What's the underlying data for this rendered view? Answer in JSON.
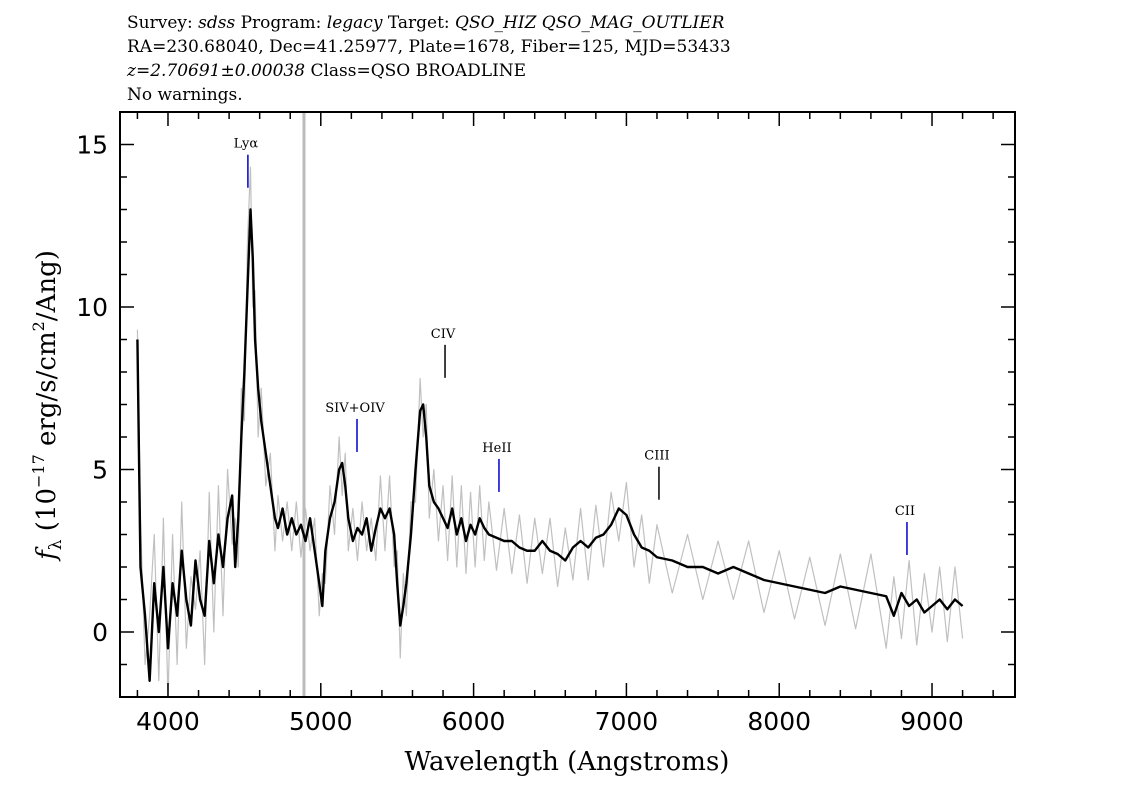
{
  "chart_data": {
    "type": "line",
    "title_lines": [
      [
        {
          "text": "Survey: "
        },
        {
          "text": "sdss",
          "italic": true
        },
        {
          "text": " Program: "
        },
        {
          "text": "legacy",
          "italic": true
        },
        {
          "text": " Target: "
        },
        {
          "text": "QSO_HIZ QSO_MAG_OUTLIER",
          "italic": true
        }
      ],
      [
        {
          "text": "RA=230.68040, Dec=41.25977, Plate=1678, Fiber=125, MJD=53433"
        }
      ],
      [
        {
          "text": "z=2.70691±0.00038",
          "italic": true
        },
        {
          "text": " Class=QSO BROADLINE"
        }
      ],
      [
        {
          "text": "No warnings."
        }
      ]
    ],
    "xlabel": "Wavelength (Angstroms)",
    "ylabel": [
      "f",
      "λ",
      " (10",
      "−17",
      " erg/s/cm",
      "2",
      "/Ang)"
    ],
    "xlim": [
      3686,
      9543
    ],
    "ylim": [
      -2,
      16
    ],
    "xticks": [
      4000,
      5000,
      6000,
      7000,
      8000,
      9000
    ],
    "yticks": [
      0,
      5,
      10,
      15
    ],
    "xminorticks": [
      3800,
      4200,
      4400,
      4600,
      4800,
      5200,
      5400,
      5600,
      5800,
      6200,
      6400,
      6600,
      6800,
      7200,
      7400,
      7600,
      7800,
      8200,
      8400,
      8600,
      8800,
      9200,
      9400
    ],
    "yminorticks": [
      -1,
      1,
      2,
      3,
      4,
      6,
      7,
      8,
      9,
      11,
      12,
      13,
      14,
      16
    ],
    "vlines": [
      {
        "x": 4890,
        "color": "#bbbbbb"
      }
    ],
    "x": [
      3800,
      3820,
      3850,
      3880,
      3910,
      3940,
      3970,
      4000,
      4030,
      4060,
      4090,
      4120,
      4150,
      4180,
      4210,
      4240,
      4270,
      4300,
      4330,
      4360,
      4390,
      4420,
      4440,
      4460,
      4480,
      4500,
      4520,
      4540,
      4555,
      4570,
      4590,
      4610,
      4640,
      4670,
      4700,
      4720,
      4750,
      4780,
      4810,
      4840,
      4870,
      4900,
      4930,
      4960,
      4990,
      5010,
      5030,
      5060,
      5090,
      5120,
      5140,
      5160,
      5180,
      5210,
      5240,
      5270,
      5300,
      5330,
      5360,
      5390,
      5420,
      5450,
      5480,
      5500,
      5520,
      5540,
      5560,
      5590,
      5620,
      5650,
      5670,
      5690,
      5710,
      5740,
      5770,
      5800,
      5830,
      5860,
      5890,
      5920,
      5950,
      5980,
      6010,
      6040,
      6070,
      6100,
      6150,
      6200,
      6250,
      6300,
      6350,
      6400,
      6450,
      6500,
      6550,
      6600,
      6650,
      6700,
      6750,
      6800,
      6850,
      6900,
      6950,
      7000,
      7050,
      7100,
      7150,
      7200,
      7300,
      7400,
      7500,
      7600,
      7700,
      7800,
      7900,
      8000,
      8100,
      8200,
      8300,
      8400,
      8500,
      8600,
      8700,
      8750,
      8800,
      8850,
      8900,
      8950,
      9000,
      9050,
      9100,
      9150,
      9200
    ],
    "series": [
      {
        "color": "#c0c0c0",
        "values": [
          9.3,
          3.5,
          -1.0,
          0.5,
          3.0,
          -1.5,
          3.5,
          -2.0,
          3.0,
          -1.0,
          4.0,
          -0.5,
          1.7,
          0.7,
          2.5,
          -1.0,
          4.3,
          0.0,
          4.5,
          0.5,
          5.0,
          2.7,
          3.5,
          2.0,
          7.5,
          6.5,
          12.0,
          14.3,
          10.0,
          10.5,
          6.0,
          7.5,
          4.5,
          5.5,
          2.5,
          4.2,
          2.8,
          4.0,
          2.5,
          4.0,
          2.3,
          3.8,
          2.5,
          3.5,
          0.5,
          1.8,
          1.5,
          4.5,
          3.0,
          6.0,
          4.2,
          5.5,
          2.5,
          3.8,
          2.2,
          4.0,
          2.5,
          3.5,
          2.2,
          4.8,
          2.5,
          4.8,
          2.0,
          2.5,
          -0.8,
          1.8,
          0.5,
          4.0,
          4.0,
          7.8,
          6.0,
          7.0,
          3.5,
          5.0,
          2.8,
          4.5,
          2.2,
          4.8,
          2.0,
          4.5,
          1.8,
          4.3,
          2.0,
          4.5,
          2.2,
          4.0,
          1.9,
          3.8,
          1.8,
          3.6,
          1.5,
          3.5,
          1.8,
          3.5,
          1.4,
          3.2,
          1.6,
          3.8,
          1.6,
          3.9,
          2.0,
          4.3,
          2.8,
          4.6,
          2.0,
          3.6,
          1.5,
          3.3,
          1.2,
          3.0,
          1.0,
          2.8,
          1.0,
          2.8,
          0.6,
          2.5,
          0.4,
          2.3,
          0.2,
          2.4,
          0.1,
          2.4,
          -0.5,
          1.7,
          -0.2,
          2.2,
          -0.4,
          1.8,
          0.0,
          2.0,
          -0.3,
          2.0,
          -0.2
        ]
      },
      {
        "color": "#000000",
        "values": [
          9.0,
          2.0,
          0.5,
          -1.5,
          1.5,
          0.0,
          2.0,
          -0.5,
          1.5,
          0.5,
          2.5,
          1.0,
          0.2,
          2.2,
          1.0,
          0.5,
          2.8,
          1.5,
          3.0,
          2.0,
          3.5,
          4.2,
          2.0,
          3.5,
          6.0,
          8.0,
          10.5,
          13.0,
          11.5,
          9.0,
          7.5,
          6.5,
          5.5,
          4.5,
          3.5,
          3.2,
          3.8,
          3.0,
          3.5,
          3.0,
          3.3,
          2.8,
          3.5,
          2.5,
          1.5,
          0.8,
          2.5,
          3.5,
          4.0,
          5.0,
          5.2,
          4.5,
          3.5,
          2.8,
          3.2,
          3.0,
          3.5,
          2.5,
          3.2,
          3.8,
          3.5,
          3.8,
          3.0,
          1.5,
          0.2,
          0.8,
          1.5,
          3.0,
          5.0,
          6.8,
          7.0,
          6.0,
          4.5,
          4.0,
          3.8,
          3.5,
          3.2,
          3.8,
          3.0,
          3.5,
          2.8,
          3.3,
          3.0,
          3.5,
          3.2,
          3.0,
          2.9,
          2.8,
          2.8,
          2.6,
          2.5,
          2.5,
          2.8,
          2.5,
          2.4,
          2.2,
          2.6,
          2.8,
          2.6,
          2.9,
          3.0,
          3.3,
          3.8,
          3.6,
          3.0,
          2.6,
          2.5,
          2.3,
          2.2,
          2.0,
          2.0,
          1.8,
          2.0,
          1.8,
          1.6,
          1.5,
          1.4,
          1.3,
          1.2,
          1.4,
          1.3,
          1.2,
          1.1,
          0.5,
          1.2,
          0.8,
          1.0,
          0.6,
          0.8,
          1.0,
          0.7,
          1.0,
          0.8
        ]
      }
    ],
    "lines": [
      {
        "label": "Lyα",
        "x": 4523,
        "y": 13.67,
        "color": "#0000cc"
      },
      {
        "label": "SIV+OIV",
        "x": 5237,
        "y": 5.54,
        "color": "#0000cc"
      },
      {
        "label": "CIV",
        "x": 5813,
        "y": 7.82,
        "color": "#000000"
      },
      {
        "label": "HeII",
        "x": 6166,
        "y": 4.31,
        "color": "#0000cc"
      },
      {
        "label": "CIII",
        "x": 7213,
        "y": 4.07,
        "color": "#000000"
      },
      {
        "label": "CII",
        "x": 8836,
        "y": 2.37,
        "color": "#0000cc"
      }
    ]
  }
}
